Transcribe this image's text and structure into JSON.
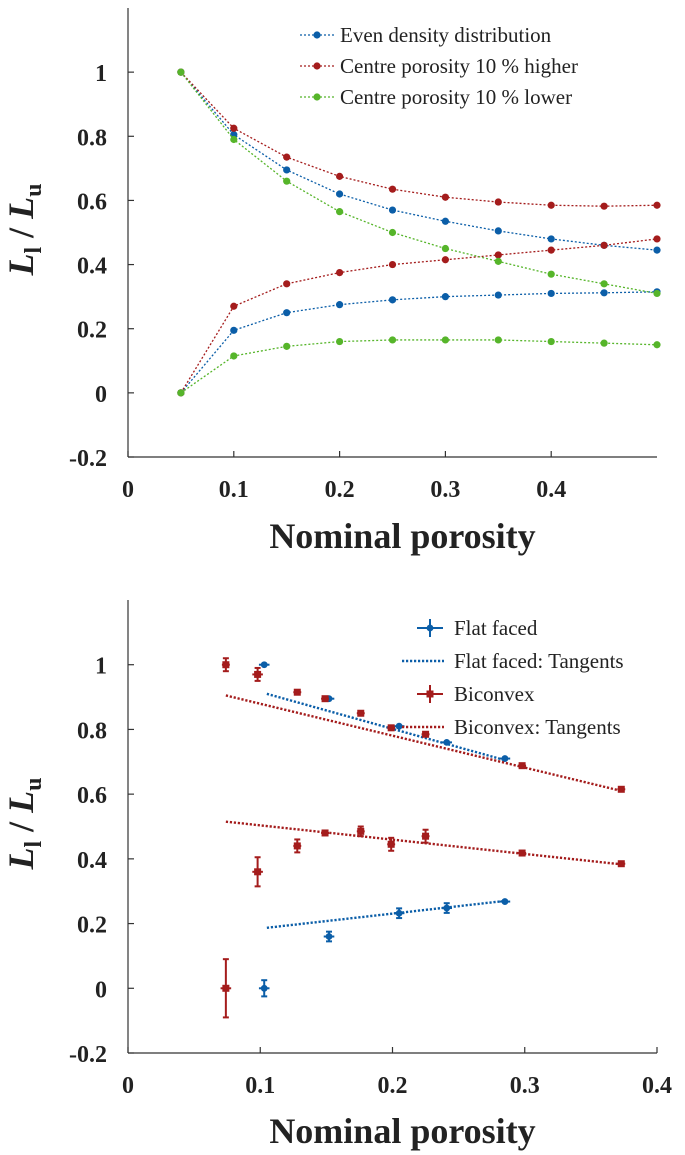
{
  "chart_data": [
    {
      "type": "line",
      "xlabel": "Nominal porosity",
      "ylabel": {
        "main": "L",
        "sub1": "l",
        "sep": " / ",
        "main2": "L",
        "sub2": "u"
      },
      "xlim": [
        0,
        0.5
      ],
      "ylim": [
        -0.2,
        1.2
      ],
      "xticks": [
        0,
        0.1,
        0.2,
        0.3,
        0.4
      ],
      "xtick_labels": [
        "0",
        "0.1",
        "0.2",
        "0.3",
        "0.4"
      ],
      "yticks": [
        -0.2,
        0,
        0.2,
        0.4,
        0.6,
        0.8,
        1
      ],
      "ytick_labels": [
        "-0.2",
        "0",
        "0.2",
        "0.4",
        "0.6",
        "0.8",
        "1"
      ],
      "legend_position": "top-right",
      "x": [
        0.05,
        0.1,
        0.15,
        0.2,
        0.25,
        0.3,
        0.35,
        0.4,
        0.45,
        0.5
      ],
      "series": [
        {
          "name": "Even density distribution",
          "color": "#0b5ea8",
          "upper": [
            1.0,
            0.805,
            0.695,
            0.62,
            0.57,
            0.535,
            0.505,
            0.48,
            0.46,
            0.445
          ],
          "lower": [
            0.0,
            0.195,
            0.25,
            0.275,
            0.29,
            0.3,
            0.305,
            0.31,
            0.312,
            0.315
          ]
        },
        {
          "name": "Centre porosity 10 % higher",
          "color": "#a41c1c",
          "upper": [
            1.0,
            0.825,
            0.735,
            0.675,
            0.635,
            0.61,
            0.595,
            0.585,
            0.582,
            0.585
          ],
          "lower": [
            0.0,
            0.27,
            0.34,
            0.375,
            0.4,
            0.415,
            0.43,
            0.445,
            0.46,
            0.48
          ]
        },
        {
          "name": "Centre porosity 10 % lower",
          "color": "#56b52a",
          "upper": [
            1.0,
            0.79,
            0.66,
            0.565,
            0.5,
            0.45,
            0.41,
            0.37,
            0.34,
            0.31
          ],
          "lower": [
            0.0,
            0.115,
            0.145,
            0.16,
            0.165,
            0.165,
            0.165,
            0.16,
            0.155,
            0.15
          ]
        }
      ]
    },
    {
      "type": "scatter",
      "xlabel": "Nominal porosity",
      "ylabel": {
        "main": "L",
        "sub1": "l",
        "sep": " / ",
        "main2": "L",
        "sub2": "u"
      },
      "xlim": [
        0,
        0.4
      ],
      "ylim": [
        -0.2,
        1.2
      ],
      "xticks": [
        0,
        0.1,
        0.2,
        0.3,
        0.4
      ],
      "xtick_labels": [
        "0",
        "0.1",
        "0.2",
        "0.3",
        "0.4"
      ],
      "yticks": [
        -0.2,
        0,
        0.2,
        0.4,
        0.6,
        0.8,
        1
      ],
      "ytick_labels": [
        "-0.2",
        "0",
        "0.2",
        "0.4",
        "0.6",
        "0.8",
        "1"
      ],
      "legend_position": "top-right",
      "legend": [
        "Flat faced",
        "Flat faced: Tangents",
        "Biconvex",
        "Biconvex: Tangents"
      ],
      "series": [
        {
          "name": "Flat faced",
          "color": "#0b5ea8",
          "marker": "circle",
          "upper": [
            [
              0.103,
              1.0,
              0.004,
              0.0
            ],
            [
              0.152,
              0.895,
              0.004,
              0.0
            ],
            [
              0.205,
              0.81,
              0.004,
              0.0
            ],
            [
              0.241,
              0.76,
              0.004,
              0.0
            ],
            [
              0.285,
              0.71,
              0.004,
              0.0
            ]
          ],
          "lower": [
            [
              0.103,
              0.0,
              0.004,
              0.025
            ],
            [
              0.152,
              0.16,
              0.004,
              0.015
            ],
            [
              0.205,
              0.232,
              0.004,
              0.015
            ],
            [
              0.241,
              0.248,
              0.004,
              0.015
            ],
            [
              0.285,
              0.268,
              0.004,
              0.0
            ]
          ]
        },
        {
          "name": "Flat faced: Tangents",
          "color": "#0b5ea8",
          "style": "dotted",
          "upper_line": {
            "x": [
              0.105,
              0.285
            ],
            "y": [
              0.91,
              0.705
            ]
          },
          "lower_line": {
            "x": [
              0.105,
              0.285
            ],
            "y": [
              0.187,
              0.27
            ]
          }
        },
        {
          "name": "Biconvex",
          "color": "#a41c1c",
          "marker": "square",
          "upper": [
            [
              0.074,
              1.0,
              0.003,
              0.02
            ],
            [
              0.098,
              0.97,
              0.004,
              0.02
            ],
            [
              0.128,
              0.915,
              0.003,
              0.0
            ],
            [
              0.149,
              0.895,
              0.003,
              0.0
            ],
            [
              0.176,
              0.85,
              0.003,
              0.0
            ],
            [
              0.199,
              0.805,
              0.003,
              0.0
            ],
            [
              0.225,
              0.785,
              0.003,
              0.0
            ],
            [
              0.298,
              0.688,
              0.003,
              0.0
            ],
            [
              0.373,
              0.615,
              0.003,
              0.0
            ]
          ],
          "lower": [
            [
              0.074,
              0.0,
              0.004,
              0.09
            ],
            [
              0.098,
              0.36,
              0.004,
              0.045
            ],
            [
              0.128,
              0.44,
              0.003,
              0.02
            ],
            [
              0.149,
              0.48,
              0.003,
              0.0
            ],
            [
              0.176,
              0.485,
              0.003,
              0.015
            ],
            [
              0.199,
              0.445,
              0.003,
              0.02
            ],
            [
              0.225,
              0.47,
              0.003,
              0.02
            ],
            [
              0.298,
              0.418,
              0.003,
              0.0
            ],
            [
              0.373,
              0.385,
              0.003,
              0.0
            ]
          ]
        },
        {
          "name": "Biconvex: Tangents",
          "color": "#a41c1c",
          "style": "dotted",
          "upper_line": {
            "x": [
              0.074,
              0.373
            ],
            "y": [
              0.905,
              0.61
            ]
          },
          "lower_line": {
            "x": [
              0.074,
              0.373
            ],
            "y": [
              0.515,
              0.383
            ]
          }
        }
      ]
    }
  ]
}
